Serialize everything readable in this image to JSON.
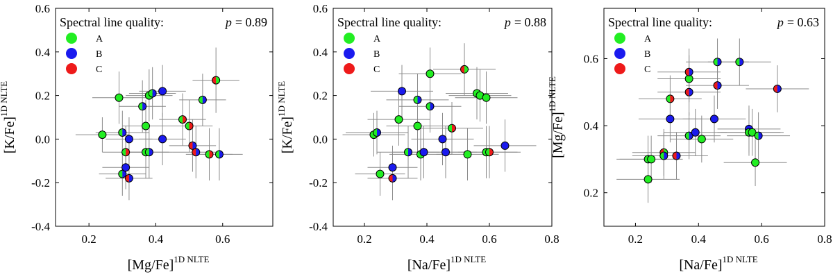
{
  "colors": {
    "A": "#22ee22",
    "B": "#1a1aee",
    "C": "#ee1a1a",
    "errorbar": "#8a8a8a"
  },
  "chart_data": [
    {
      "type": "scatter",
      "panel": "left",
      "title": "",
      "legend_title": "Spectral line quality:",
      "legend": [
        "A",
        "B",
        "C"
      ],
      "p_label": "p",
      "p_value": "= 0.89",
      "ylabel": "[K/Fe]",
      "ylabel_sup": "1D NLTE",
      "xlabel": "[Mg/Fe]",
      "xlabel_sup": "1D NLTE",
      "xlim": [
        0.1,
        0.75
      ],
      "ylim": [
        -0.4,
        0.6
      ],
      "xticks": [
        0.2,
        0.4,
        0.6
      ],
      "xticklabels": [
        "0.2",
        "0.4",
        "0.6"
      ],
      "yticks": [
        -0.4,
        -0.2,
        0.0,
        0.2,
        0.4,
        0.6
      ],
      "yticklabels": [
        "-0.4",
        "-0.2",
        "0.0",
        "0.2",
        "0.4",
        "0.6"
      ],
      "points": [
        {
          "x": 0.24,
          "y": 0.02,
          "q": [
            "A"
          ],
          "ex": 0.08,
          "ey": 0.08
        },
        {
          "x": 0.29,
          "y": 0.19,
          "q": [
            "A"
          ],
          "ex": 0.08,
          "ey": 0.12
        },
        {
          "x": 0.3,
          "y": 0.03,
          "q": [
            "A",
            "B"
          ],
          "ex": 0.08,
          "ey": 0.1
        },
        {
          "x": 0.3,
          "y": -0.16,
          "q": [
            "A",
            "B"
          ],
          "ex": 0.07,
          "ey": 0.1
        },
        {
          "x": 0.31,
          "y": -0.13,
          "q": [
            "B"
          ],
          "ex": 0.07,
          "ey": 0.1
        },
        {
          "x": 0.31,
          "y": -0.06,
          "q": [
            "A",
            "C"
          ],
          "ex": 0.07,
          "ey": 0.12
        },
        {
          "x": 0.32,
          "y": 0.0,
          "q": [
            "B"
          ],
          "ex": 0.07,
          "ey": 0.1
        },
        {
          "x": 0.32,
          "y": -0.18,
          "q": [
            "C",
            "B"
          ],
          "ex": 0.07,
          "ey": 0.1
        },
        {
          "x": 0.36,
          "y": 0.15,
          "q": [
            "A",
            "B"
          ],
          "ex": 0.07,
          "ey": 0.12
        },
        {
          "x": 0.37,
          "y": 0.06,
          "q": [
            "A"
          ],
          "ex": 0.07,
          "ey": 0.12
        },
        {
          "x": 0.37,
          "y": -0.06,
          "q": [
            "A"
          ],
          "ex": 0.07,
          "ey": 0.12
        },
        {
          "x": 0.38,
          "y": 0.2,
          "q": [
            "A"
          ],
          "ex": 0.07,
          "ey": 0.12
        },
        {
          "x": 0.38,
          "y": -0.06,
          "q": [
            "A",
            "B"
          ],
          "ex": 0.07,
          "ey": 0.12
        },
        {
          "x": 0.39,
          "y": 0.21,
          "q": [
            "A",
            "B"
          ],
          "ex": 0.07,
          "ey": 0.12
        },
        {
          "x": 0.42,
          "y": 0.22,
          "q": [
            "B"
          ],
          "ex": 0.07,
          "ey": 0.12
        },
        {
          "x": 0.42,
          "y": 0.0,
          "q": [
            "B"
          ],
          "ex": 0.07,
          "ey": 0.12
        },
        {
          "x": 0.48,
          "y": 0.09,
          "q": [
            "A",
            "C"
          ],
          "ex": 0.07,
          "ey": 0.12
        },
        {
          "x": 0.5,
          "y": 0.06,
          "q": [
            "A",
            "C"
          ],
          "ex": 0.07,
          "ey": 0.12
        },
        {
          "x": 0.51,
          "y": -0.03,
          "q": [
            "C",
            "B"
          ],
          "ex": 0.07,
          "ey": 0.12
        },
        {
          "x": 0.52,
          "y": -0.06,
          "q": [
            "C",
            "B"
          ],
          "ex": 0.07,
          "ey": 0.12
        },
        {
          "x": 0.54,
          "y": 0.18,
          "q": [
            "A",
            "B"
          ],
          "ex": 0.07,
          "ey": 0.12
        },
        {
          "x": 0.56,
          "y": -0.07,
          "q": [
            "A",
            "C"
          ],
          "ex": 0.07,
          "ey": 0.12
        },
        {
          "x": 0.58,
          "y": 0.27,
          "q": [
            "C",
            "A"
          ],
          "ex": 0.07,
          "ey": 0.15
        },
        {
          "x": 0.59,
          "y": -0.07,
          "q": [
            "A",
            "B"
          ],
          "ex": 0.07,
          "ey": 0.12
        }
      ]
    },
    {
      "type": "scatter",
      "panel": "middle",
      "title": "",
      "legend_title": "Spectral line quality:",
      "legend": [
        "A",
        "B",
        "C"
      ],
      "p_label": "p",
      "p_value": "= 0.88",
      "ylabel": "[K/Fe]",
      "ylabel_sup": "1D NLTE",
      "xlabel": "[Na/Fe]",
      "xlabel_sup": "1D NLTE",
      "xlim": [
        0.1,
        0.8
      ],
      "ylim": [
        -0.4,
        0.6
      ],
      "xticks": [
        0.2,
        0.4,
        0.6,
        0.8
      ],
      "xticklabels": [
        "0.2",
        "0.4",
        "0.6",
        "0.8"
      ],
      "yticks": [
        -0.4,
        -0.2,
        0.0,
        0.2,
        0.4,
        0.6
      ],
      "yticklabels": [
        "-0.4",
        "-0.2",
        "0.0",
        "0.2",
        "0.4",
        "0.6"
      ],
      "points": [
        {
          "x": 0.23,
          "y": 0.02,
          "q": [
            "A"
          ],
          "ex": 0.1,
          "ey": 0.1
        },
        {
          "x": 0.24,
          "y": 0.03,
          "q": [
            "A",
            "B"
          ],
          "ex": 0.1,
          "ey": 0.1
        },
        {
          "x": 0.25,
          "y": -0.16,
          "q": [
            "A"
          ],
          "ex": 0.08,
          "ey": 0.1
        },
        {
          "x": 0.29,
          "y": -0.13,
          "q": [
            "B"
          ],
          "ex": 0.08,
          "ey": 0.1
        },
        {
          "x": 0.29,
          "y": -0.18,
          "q": [
            "C",
            "B"
          ],
          "ex": 0.08,
          "ey": 0.1
        },
        {
          "x": 0.31,
          "y": 0.09,
          "q": [
            "A"
          ],
          "ex": 0.1,
          "ey": 0.12
        },
        {
          "x": 0.32,
          "y": 0.22,
          "q": [
            "B"
          ],
          "ex": 0.1,
          "ey": 0.12
        },
        {
          "x": 0.34,
          "y": -0.06,
          "q": [
            "A",
            "B"
          ],
          "ex": 0.1,
          "ey": 0.12
        },
        {
          "x": 0.37,
          "y": 0.18,
          "q": [
            "A",
            "B"
          ],
          "ex": 0.1,
          "ey": 0.12
        },
        {
          "x": 0.37,
          "y": 0.06,
          "q": [
            "A"
          ],
          "ex": 0.1,
          "ey": 0.12
        },
        {
          "x": 0.38,
          "y": -0.07,
          "q": [
            "A"
          ],
          "ex": 0.1,
          "ey": 0.12
        },
        {
          "x": 0.39,
          "y": -0.06,
          "q": [
            "B"
          ],
          "ex": 0.1,
          "ey": 0.12
        },
        {
          "x": 0.41,
          "y": 0.3,
          "q": [
            "A"
          ],
          "ex": 0.1,
          "ey": 0.12
        },
        {
          "x": 0.41,
          "y": 0.15,
          "q": [
            "A",
            "B"
          ],
          "ex": 0.1,
          "ey": 0.12
        },
        {
          "x": 0.45,
          "y": 0.0,
          "q": [
            "B"
          ],
          "ex": 0.1,
          "ey": 0.12
        },
        {
          "x": 0.46,
          "y": -0.06,
          "q": [
            "B"
          ],
          "ex": 0.1,
          "ey": 0.12
        },
        {
          "x": 0.48,
          "y": 0.05,
          "q": [
            "A",
            "C"
          ],
          "ex": 0.1,
          "ey": 0.12
        },
        {
          "x": 0.52,
          "y": 0.32,
          "q": [
            "C",
            "A"
          ],
          "ex": 0.1,
          "ey": 0.12
        },
        {
          "x": 0.53,
          "y": -0.07,
          "q": [
            "A"
          ],
          "ex": 0.1,
          "ey": 0.12
        },
        {
          "x": 0.56,
          "y": 0.21,
          "q": [
            "A"
          ],
          "ex": 0.1,
          "ey": 0.12
        },
        {
          "x": 0.57,
          "y": 0.2,
          "q": [
            "A"
          ],
          "ex": 0.1,
          "ey": 0.12
        },
        {
          "x": 0.59,
          "y": 0.19,
          "q": [
            "A"
          ],
          "ex": 0.1,
          "ey": 0.12
        },
        {
          "x": 0.59,
          "y": -0.06,
          "q": [
            "A"
          ],
          "ex": 0.1,
          "ey": 0.12
        },
        {
          "x": 0.6,
          "y": -0.06,
          "q": [
            "A",
            "C"
          ],
          "ex": 0.1,
          "ey": 0.12
        },
        {
          "x": 0.65,
          "y": -0.03,
          "q": [
            "B"
          ],
          "ex": 0.1,
          "ey": 0.12
        }
      ]
    },
    {
      "type": "scatter",
      "panel": "right",
      "title": "",
      "legend_title": "Spectral line quality:",
      "legend": [
        "A",
        "B",
        "C"
      ],
      "p_label": "p",
      "p_value": "= 0.63",
      "ylabel": "[Mg/Fe]",
      "ylabel_sup": "1D NLTE",
      "xlabel": "[Na/Fe]",
      "xlabel_sup": "1D NLTE",
      "xlim": [
        0.1,
        0.8
      ],
      "ylim": [
        0.1,
        0.75
      ],
      "xticks": [
        0.2,
        0.4,
        0.6,
        0.8
      ],
      "xticklabels": [
        "0.2",
        "0.4",
        "0.6",
        "0.8"
      ],
      "yticks": [
        0.2,
        0.4,
        0.6
      ],
      "yticklabels": [
        "0.2",
        "0.4",
        "0.6"
      ],
      "points": [
        {
          "x": 0.24,
          "y": 0.24,
          "q": [
            "A"
          ],
          "ex": 0.1,
          "ey": 0.07
        },
        {
          "x": 0.24,
          "y": 0.3,
          "q": [
            "A",
            "B"
          ],
          "ex": 0.1,
          "ey": 0.07
        },
        {
          "x": 0.25,
          "y": 0.3,
          "q": [
            "A"
          ],
          "ex": 0.1,
          "ey": 0.07
        },
        {
          "x": 0.29,
          "y": 0.32,
          "q": [
            "C",
            "A"
          ],
          "ex": 0.1,
          "ey": 0.07
        },
        {
          "x": 0.29,
          "y": 0.31,
          "q": [
            "A",
            "B"
          ],
          "ex": 0.1,
          "ey": 0.07
        },
        {
          "x": 0.31,
          "y": 0.48,
          "q": [
            "A",
            "C"
          ],
          "ex": 0.1,
          "ey": 0.07
        },
        {
          "x": 0.31,
          "y": 0.42,
          "q": [
            "B"
          ],
          "ex": 0.1,
          "ey": 0.07
        },
        {
          "x": 0.33,
          "y": 0.31,
          "q": [
            "C",
            "B"
          ],
          "ex": 0.1,
          "ey": 0.07
        },
        {
          "x": 0.37,
          "y": 0.54,
          "q": [
            "A"
          ],
          "ex": 0.1,
          "ey": 0.07
        },
        {
          "x": 0.37,
          "y": 0.56,
          "q": [
            "C",
            "B"
          ],
          "ex": 0.1,
          "ey": 0.07
        },
        {
          "x": 0.37,
          "y": 0.5,
          "q": [
            "C",
            "B"
          ],
          "ex": 0.1,
          "ey": 0.07
        },
        {
          "x": 0.37,
          "y": 0.37,
          "q": [
            "A",
            "B"
          ],
          "ex": 0.1,
          "ey": 0.07
        },
        {
          "x": 0.39,
          "y": 0.38,
          "q": [
            "B"
          ],
          "ex": 0.1,
          "ey": 0.07
        },
        {
          "x": 0.41,
          "y": 0.36,
          "q": [
            "A"
          ],
          "ex": 0.1,
          "ey": 0.07
        },
        {
          "x": 0.45,
          "y": 0.42,
          "q": [
            "B"
          ],
          "ex": 0.1,
          "ey": 0.07
        },
        {
          "x": 0.46,
          "y": 0.59,
          "q": [
            "A",
            "B"
          ],
          "ex": 0.1,
          "ey": 0.07
        },
        {
          "x": 0.46,
          "y": 0.52,
          "q": [
            "C",
            "B"
          ],
          "ex": 0.1,
          "ey": 0.07
        },
        {
          "x": 0.53,
          "y": 0.59,
          "q": [
            "A",
            "B"
          ],
          "ex": 0.1,
          "ey": 0.07
        },
        {
          "x": 0.56,
          "y": 0.39,
          "q": [
            "B"
          ],
          "ex": 0.1,
          "ey": 0.07
        },
        {
          "x": 0.56,
          "y": 0.38,
          "q": [
            "A",
            "B"
          ],
          "ex": 0.1,
          "ey": 0.07
        },
        {
          "x": 0.57,
          "y": 0.38,
          "q": [
            "A"
          ],
          "ex": 0.1,
          "ey": 0.07
        },
        {
          "x": 0.58,
          "y": 0.29,
          "q": [
            "A"
          ],
          "ex": 0.1,
          "ey": 0.07
        },
        {
          "x": 0.59,
          "y": 0.37,
          "q": [
            "A",
            "B"
          ],
          "ex": 0.1,
          "ey": 0.07
        },
        {
          "x": 0.65,
          "y": 0.51,
          "q": [
            "C",
            "B"
          ],
          "ex": 0.1,
          "ey": 0.07
        }
      ]
    }
  ]
}
